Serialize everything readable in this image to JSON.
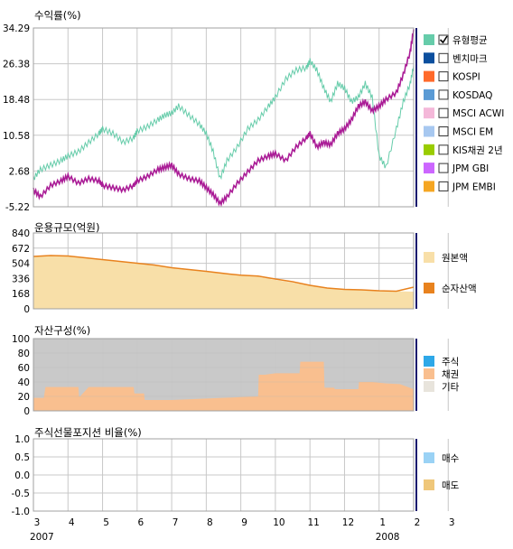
{
  "chart_data": [
    {
      "type": "line",
      "title": "수익률(%)",
      "yticks": [
        "34.29",
        "26.38",
        "18.48",
        "10.58",
        "2.68",
        "-5.22"
      ],
      "ylim": [
        -5.22,
        34.29
      ],
      "grid": true,
      "legend_position": "right",
      "legend": [
        {
          "label": "유형평균",
          "color": "#66ccaa",
          "checked": true
        },
        {
          "label": "벤치마크",
          "color": "#0b4f9e",
          "checked": false
        },
        {
          "label": "KOSPI",
          "color": "#ff6a2b",
          "checked": false
        },
        {
          "label": "KOSDAQ",
          "color": "#5b9bd5",
          "checked": false
        },
        {
          "label": "MSCI ACWI",
          "color": "#f4b8d9",
          "checked": false
        },
        {
          "label": "MSCI EM",
          "color": "#a7c8f0",
          "checked": false
        },
        {
          "label": "KIS채권 2년",
          "color": "#99cc00",
          "checked": false
        },
        {
          "label": "JPM GBI",
          "color": "#cc66ff",
          "checked": false
        },
        {
          "label": "JPM EMBI",
          "color": "#f5a623",
          "checked": false
        }
      ],
      "series": [
        {
          "name": "유형평균",
          "color": "#66ccaa",
          "x": [
            3.0,
            3.2,
            3.5,
            3.8,
            4.0,
            4.3,
            4.6,
            4.9,
            5.0,
            5.3,
            5.6,
            5.9,
            6.0,
            6.3,
            6.6,
            6.8,
            7.0,
            7.2,
            7.5,
            7.8,
            8.0,
            8.2,
            8.4,
            8.6,
            8.9,
            9.2,
            9.5,
            9.8,
            10.0,
            10.3,
            10.6,
            10.9,
            11.0,
            11.2,
            11.4,
            11.6,
            11.8,
            12.0,
            12.2,
            12.4,
            12.6,
            12.8,
            13.0,
            13.2,
            13.5,
            13.7,
            13.9,
            14.0
          ],
          "y": [
            1.0,
            3.0,
            4.0,
            5.0,
            6.0,
            7.0,
            9.0,
            11.0,
            12.0,
            11.0,
            9.0,
            10.0,
            11.5,
            12.5,
            14.0,
            15.0,
            15.5,
            17.0,
            15.0,
            13.0,
            11.0,
            7.0,
            1.0,
            5.0,
            8.0,
            12.0,
            14.0,
            17.0,
            19.0,
            23.0,
            25.0,
            25.5,
            27.0,
            25.0,
            21.0,
            18.0,
            22.0,
            21.0,
            18.0,
            19.0,
            22.0,
            19.0,
            6.0,
            3.5,
            12.0,
            18.0,
            22.0,
            26.0
          ]
        },
        {
          "name": "",
          "color": "#aa1c96",
          "x": [
            3.0,
            3.2,
            3.5,
            3.8,
            4.0,
            4.3,
            4.6,
            4.9,
            5.0,
            5.3,
            5.6,
            5.9,
            6.0,
            6.3,
            6.6,
            6.8,
            7.0,
            7.2,
            7.5,
            7.8,
            8.0,
            8.2,
            8.4,
            8.6,
            8.9,
            9.2,
            9.5,
            9.8,
            10.0,
            10.3,
            10.6,
            10.9,
            11.0,
            11.2,
            11.4,
            11.6,
            11.8,
            12.0,
            12.2,
            12.4,
            12.6,
            12.8,
            13.0,
            13.2,
            13.5,
            13.7,
            13.9,
            14.0
          ],
          "y": [
            -1.5,
            -3.0,
            -0.5,
            0.5,
            1.5,
            0.0,
            1.0,
            0.5,
            -0.5,
            -1.0,
            -1.5,
            -0.5,
            0.5,
            1.5,
            3.0,
            3.5,
            4.0,
            2.0,
            1.0,
            0.5,
            -1.0,
            -2.5,
            -4.5,
            -3.0,
            0.0,
            2.5,
            5.0,
            6.0,
            6.5,
            5.0,
            8.0,
            10.0,
            11.0,
            8.0,
            9.0,
            8.5,
            11.0,
            12.0,
            14.0,
            17.0,
            18.0,
            16.0,
            17.0,
            18.5,
            20.0,
            24.0,
            29.0,
            34.0
          ]
        }
      ]
    },
    {
      "type": "area",
      "title": "운용규모(억원)",
      "yticks": [
        "840",
        "672",
        "504",
        "336",
        "168",
        "0"
      ],
      "ylim": [
        0,
        840
      ],
      "legend": [
        {
          "label": "원본액",
          "color": "#f8dfa8"
        },
        {
          "label": "순자산액",
          "color": "#e8821e"
        }
      ],
      "series": [
        {
          "name": "원본액",
          "x": [
            3.0,
            3.5,
            4.0,
            4.5,
            5.0,
            5.5,
            6.0,
            6.5,
            7.0,
            7.5,
            8.0,
            8.5,
            9.0,
            9.5,
            10.0,
            10.5,
            11.0,
            11.5,
            12.0,
            12.5,
            13.0,
            13.5,
            14.0
          ],
          "y": [
            575,
            585,
            580,
            560,
            540,
            520,
            500,
            480,
            450,
            430,
            410,
            390,
            370,
            355,
            320,
            290,
            255,
            230,
            215,
            210,
            200,
            195,
            190
          ]
        },
        {
          "name": "순자산액",
          "x": [
            3.0,
            3.5,
            4.0,
            4.5,
            5.0,
            5.5,
            6.0,
            6.5,
            7.0,
            7.5,
            8.0,
            8.5,
            9.0,
            9.5,
            10.0,
            10.5,
            11.0,
            11.5,
            12.0,
            12.5,
            13.0,
            13.5,
            14.0
          ],
          "y": [
            580,
            590,
            585,
            565,
            545,
            525,
            505,
            485,
            455,
            435,
            415,
            392,
            372,
            362,
            330,
            300,
            260,
            230,
            215,
            210,
            200,
            195,
            240
          ]
        }
      ]
    },
    {
      "type": "area",
      "title": "자산구성(%)",
      "yticks": [
        "100",
        "80",
        "60",
        "40",
        "20",
        "0"
      ],
      "ylim": [
        0,
        100
      ],
      "legend": [
        {
          "label": "주식",
          "color": "#2ea8e8"
        },
        {
          "label": "채권",
          "color": "#f9bf8f"
        },
        {
          "label": "기타",
          "color": "#e8e4dc"
        }
      ],
      "series": [
        {
          "name": "채권",
          "x": [
            3.0,
            3.3,
            3.35,
            4.3,
            4.32,
            4.35,
            4.6,
            4.62,
            5.0,
            5.9,
            5.92,
            6.2,
            6.22,
            7.0,
            8.0,
            9.0,
            9.5,
            9.52,
            9.7,
            10.0,
            10.7,
            10.72,
            11.4,
            11.42,
            11.7,
            11.72,
            12.0,
            12.4,
            12.42,
            12.8,
            13.2,
            13.6,
            14.0
          ],
          "y": [
            18,
            18,
            33,
            33,
            20,
            20,
            33,
            33,
            33,
            33,
            24,
            24,
            15,
            15,
            17,
            19,
            20,
            50,
            50,
            52,
            52,
            68,
            68,
            32,
            32,
            30,
            30,
            30,
            40,
            40,
            38,
            37,
            30
          ]
        }
      ]
    },
    {
      "type": "line",
      "title": "주식선물포지션 비율(%)",
      "yticks": [
        "1.0",
        "0.5",
        "0.0",
        "-0.5",
        "-1.0"
      ],
      "ylim": [
        -1.0,
        1.0
      ],
      "legend": [
        {
          "label": "매수",
          "color": "#9ad2f5"
        },
        {
          "label": "매도",
          "color": "#efc77a"
        }
      ],
      "series": []
    }
  ],
  "xaxis": {
    "ticks": [
      "3",
      "4",
      "5",
      "6",
      "7",
      "8",
      "9",
      "10",
      "11",
      "12",
      "1",
      "2",
      "3"
    ],
    "years": [
      "2007",
      "2008"
    ],
    "xlim": [
      3,
      14
    ]
  },
  "colors": {
    "grid": "#c8c8c8",
    "plot_border": "#a0a0a0",
    "composition_background": "#c9c9c9",
    "legend_bar": "#17186e",
    "checkbox_border": "#333333"
  }
}
